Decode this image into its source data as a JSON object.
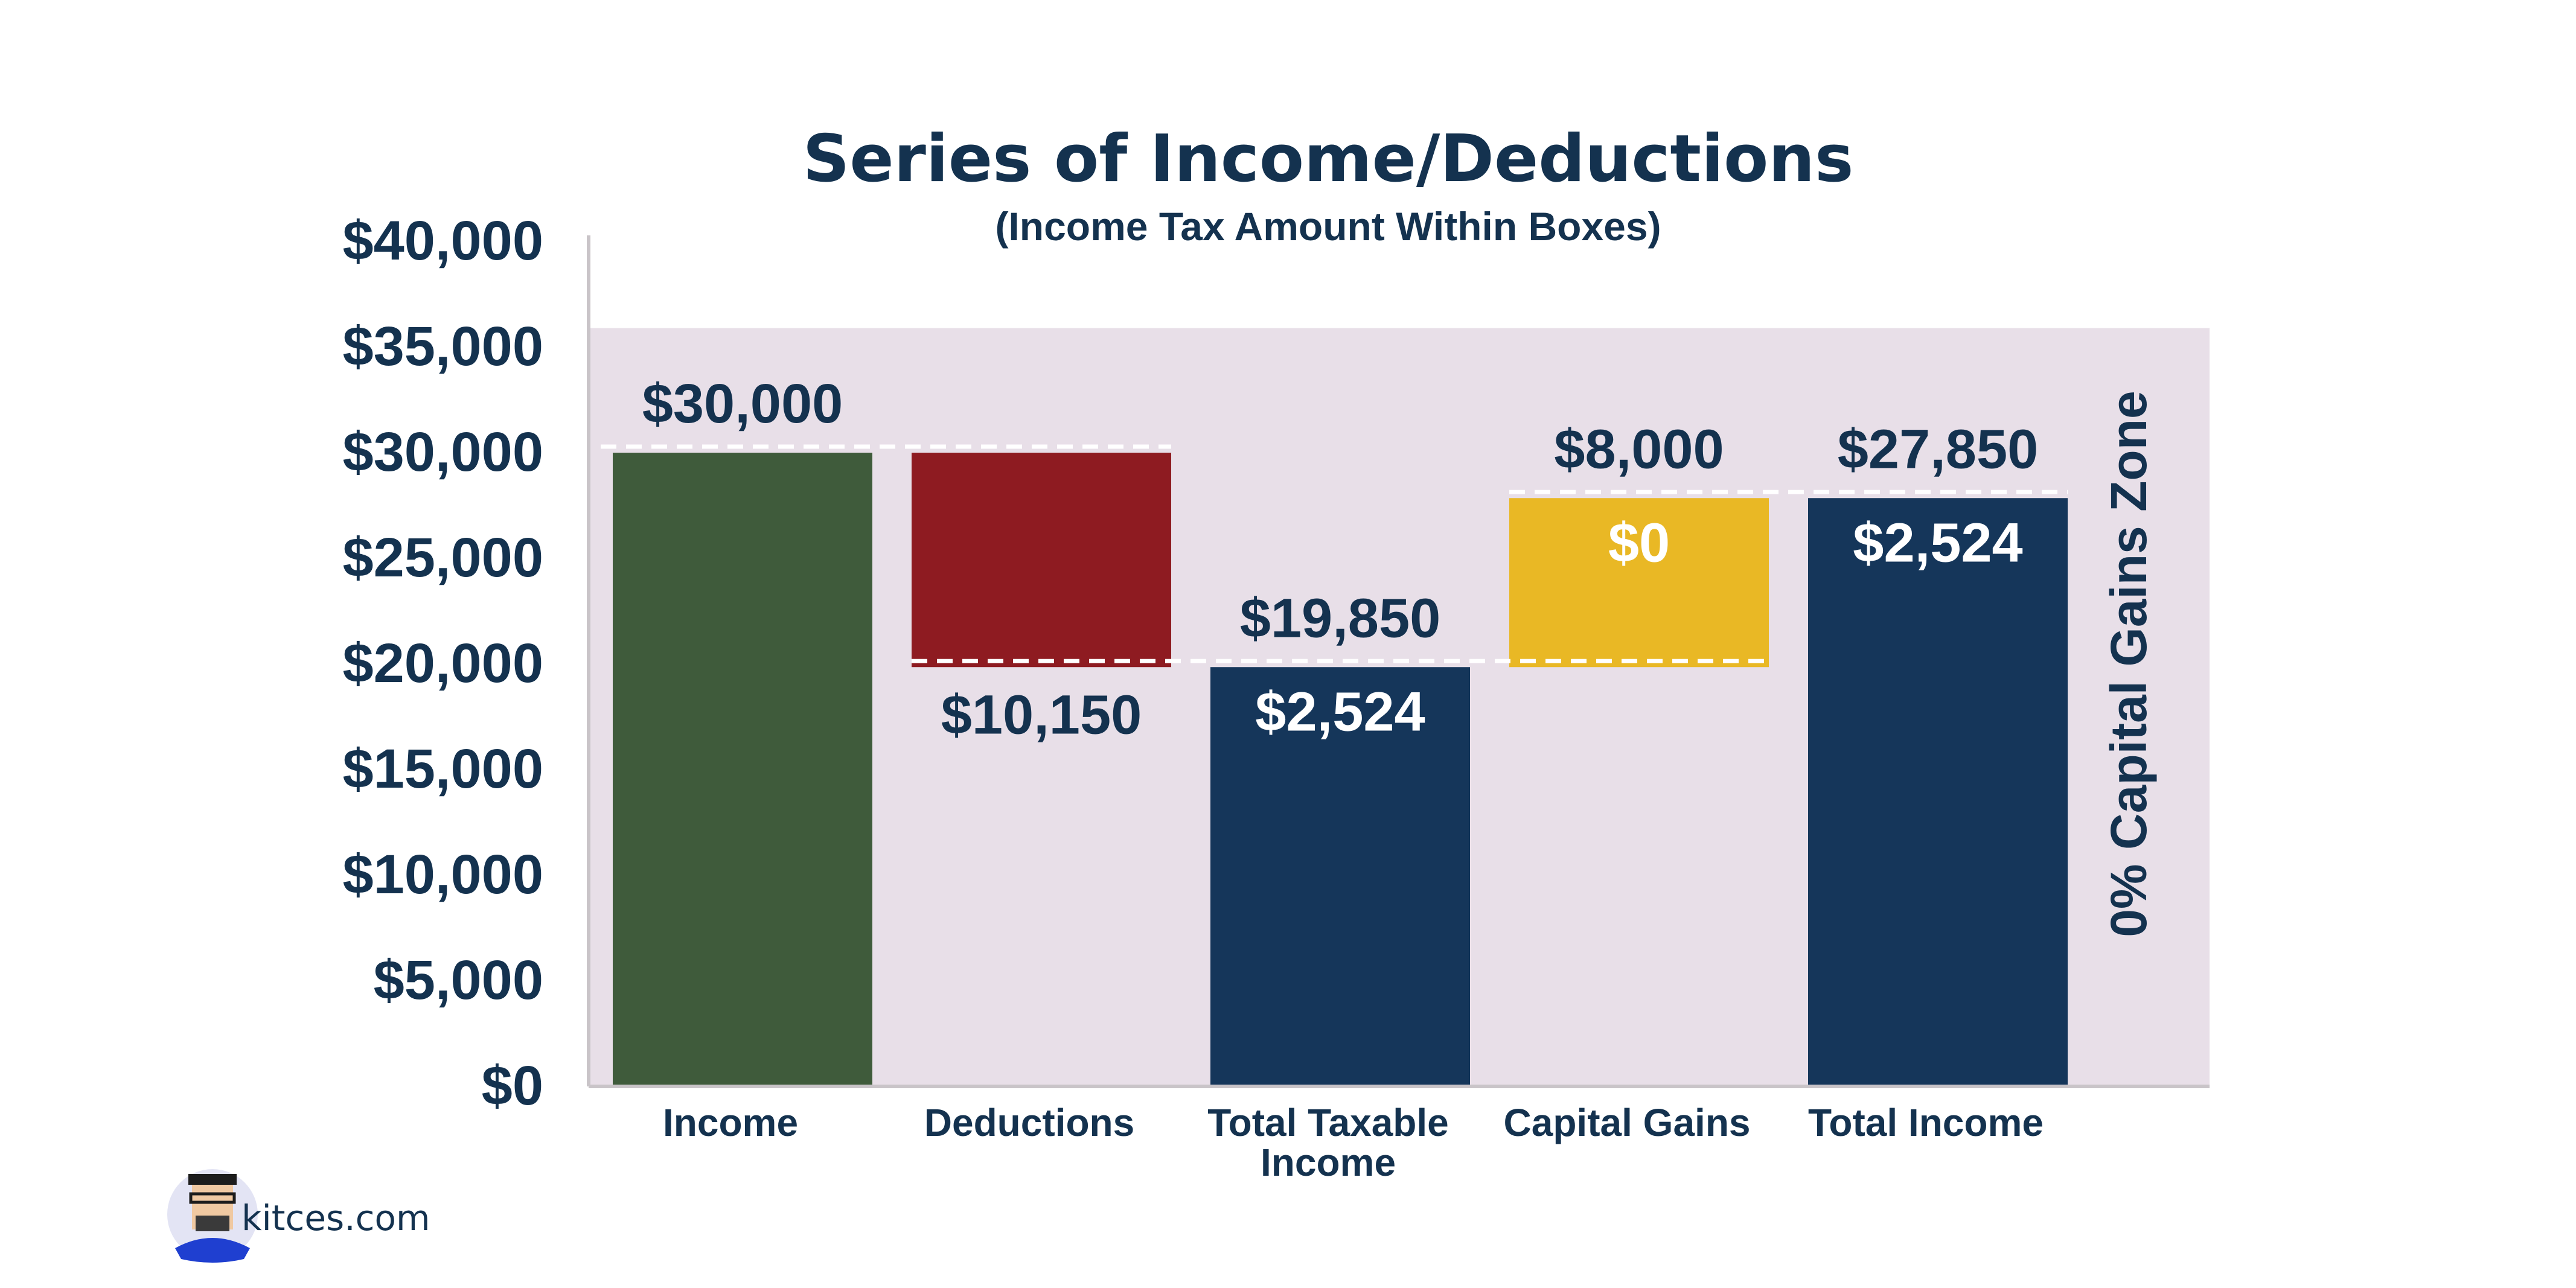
{
  "chart_data": {
    "type": "bar",
    "subtype": "waterfall",
    "title": "Series of Income/Deductions",
    "subtitle": "(Income Tax Amount Within Boxes)",
    "ylim": [
      0,
      40000
    ],
    "yticks": [
      "$0",
      "$5,000",
      "$10,000",
      "$15,000",
      "$20,000",
      "$25,000",
      "$30,000",
      "$35,000",
      "$40,000"
    ],
    "ytick_values": [
      0,
      5000,
      10000,
      15000,
      20000,
      25000,
      30000,
      35000,
      40000
    ],
    "categories": [
      "Income",
      "Deductions",
      "Total Taxable Income",
      "Capital Gains",
      "Total Income"
    ],
    "bars": [
      {
        "category": "Income",
        "bottom": 0,
        "top": 30000,
        "color": "#3f5b3b",
        "label_above": "$30,000",
        "label_inside": ""
      },
      {
        "category": "Deductions",
        "bottom": 19850,
        "top": 30000,
        "color": "#8e1b21",
        "label_below": "$10,150",
        "label_inside": ""
      },
      {
        "category": "Total Taxable Income",
        "bottom": 0,
        "top": 19850,
        "color": "#15365a",
        "label_above": "$19,850",
        "label_inside": "$2,524"
      },
      {
        "category": "Capital Gains",
        "bottom": 19850,
        "top": 27850,
        "color": "#e9b825",
        "label_above": "$8,000",
        "label_inside": "$0"
      },
      {
        "category": "Total Income",
        "bottom": 0,
        "top": 27850,
        "color": "#15365a",
        "label_above": "$27,850",
        "label_inside": "$2,524"
      }
    ],
    "zone": {
      "label": "0% Capital Gains Zone",
      "from": 0,
      "to": 35900,
      "color": "#e8dfe8"
    },
    "grid": false,
    "legend": "none"
  },
  "brand": {
    "text": "kitces.com"
  },
  "colors": {
    "text": "#14324f",
    "axis": "#c9c4c8",
    "connector": "#ffffff"
  }
}
